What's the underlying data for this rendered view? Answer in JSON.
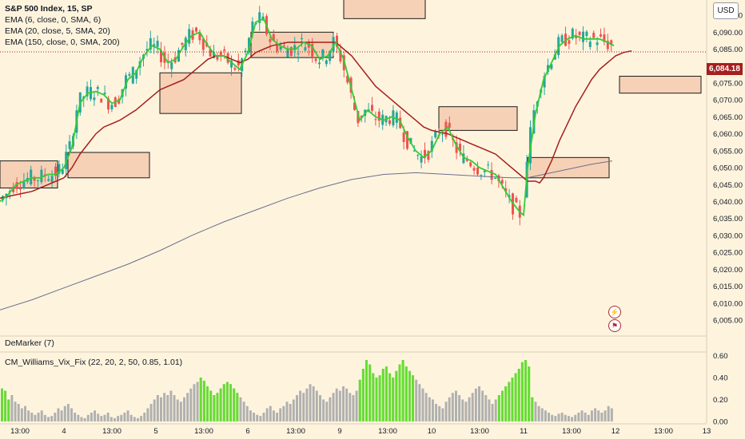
{
  "header": {
    "symbol_line": "S&P 500 Index, 15, SP",
    "indicators": [
      "EMA (6, close, 0, SMA, 6)",
      "EMA (20, close, 5, SMA, 20)",
      "EMA (150, close, 0, SMA, 200)"
    ],
    "currency_button": "USD"
  },
  "oscillators": {
    "demarker_label": "DeMarker (7)",
    "vix_fix_label": "CM_Williams_Vix_Fix (22, 20, 2, 50, 0.85, 1.01)"
  },
  "price_tag": "6,084.18",
  "icons": [
    "flash-icon",
    "flag-icon"
  ],
  "colors": {
    "background": "#fef4de",
    "up_candle": "#26a69a",
    "down_candle": "#ef5350",
    "ema6": "#33cc33",
    "ema20": "#a61e1e",
    "ema150": "#6a6f8c",
    "zone_fill": "#f3c5a8",
    "vix_normal": "#b0b0b0",
    "vix_high": "#66dd33"
  },
  "chart_data": [
    {
      "type": "candlestick",
      "title": "S&P 500 Index, 15, SP",
      "y_axis_ticks": [
        "6,005.00",
        "6,010.00",
        "6,015.00",
        "6,020.00",
        "6,025.00",
        "6,030.00",
        "6,035.00",
        "6,040.00",
        "6,045.00",
        "6,050.00",
        "6,055.00",
        "6,060.00",
        "6,065.00",
        "6,070.00",
        "6,075.00",
        "6,080.00",
        "6,085.00",
        "6,090.00",
        "6,095.00"
      ],
      "y_tick_values": [
        6005,
        6010,
        6015,
        6020,
        6025,
        6030,
        6035,
        6040,
        6045,
        6050,
        6055,
        6060,
        6065,
        6070,
        6075,
        6080,
        6085,
        6090,
        6095
      ],
      "ylim": [
        6001,
        6099.5
      ],
      "x_axis_ticks": [
        "13:00",
        "4",
        "13:00",
        "5",
        "13:00",
        "6",
        "13:00",
        "9",
        "13:00",
        "10",
        "13:00",
        "11",
        "13:00",
        "12",
        "13:00",
        "13"
      ],
      "last_price": 6084.18,
      "series": [
        {
          "name": "EMA (6, close, 0, SMA, 6)",
          "points": [
            [
              0,
              6040
            ],
            [
              10,
              6042
            ],
            [
              20,
              6045
            ],
            [
              30,
              6046
            ],
            [
              40,
              6047
            ],
            [
              50,
              6047
            ],
            [
              60,
              6048
            ],
            [
              70,
              6048
            ],
            [
              80,
              6050
            ],
            [
              90,
              6056
            ],
            [
              100,
              6069
            ],
            [
              110,
              6072
            ],
            [
              120,
              6072.5
            ],
            [
              130,
              6071.5
            ],
            [
              140,
              6069
            ],
            [
              150,
              6070
            ],
            [
              160,
              6076
            ],
            [
              170,
              6078
            ],
            [
              180,
              6083
            ],
            [
              190,
              6086
            ],
            [
              200,
              6085
            ],
            [
              210,
              6081
            ],
            [
              220,
              6082
            ],
            [
              230,
              6086
            ],
            [
              240,
              6089
            ],
            [
              250,
              6090
            ],
            [
              260,
              6086
            ],
            [
              270,
              6083
            ],
            [
              280,
              6083
            ],
            [
              290,
              6081
            ],
            [
              300,
              6079
            ],
            [
              310,
              6084
            ],
            [
              320,
              6093
            ],
            [
              330,
              6094
            ],
            [
              340,
              6088
            ],
            [
              350,
              6086
            ],
            [
              360,
              6085
            ],
            [
              370,
              6085
            ],
            [
              380,
              6087
            ],
            [
              390,
              6086
            ],
            [
              400,
              6082
            ],
            [
              410,
              6083
            ],
            [
              420,
              6087
            ],
            [
              430,
              6082
            ],
            [
              440,
              6073
            ],
            [
              450,
              6064
            ],
            [
              460,
              6067
            ],
            [
              470,
              6065
            ],
            [
              480,
              6064
            ],
            [
              490,
              6065
            ],
            [
              500,
              6064
            ],
            [
              510,
              6059
            ],
            [
              520,
              6055
            ],
            [
              530,
              6053
            ],
            [
              540,
              6055
            ],
            [
              550,
              6060
            ],
            [
              560,
              6062
            ],
            [
              570,
              6057
            ],
            [
              580,
              6053
            ],
            [
              590,
              6052
            ],
            [
              600,
              6050
            ],
            [
              610,
              6049
            ],
            [
              620,
              6048
            ],
            [
              630,
              6044
            ],
            [
              640,
              6040
            ],
            [
              650,
              6037
            ],
            [
              655,
              6036
            ],
            [
              660,
              6050
            ],
            [
              670,
              6066
            ],
            [
              680,
              6076
            ],
            [
              690,
              6081
            ],
            [
              700,
              6086
            ],
            [
              710,
              6088
            ],
            [
              720,
              6089
            ],
            [
              730,
              6088
            ],
            [
              740,
              6088
            ],
            [
              750,
              6088
            ],
            [
              760,
              6087
            ],
            [
              768,
              6086
            ]
          ]
        },
        {
          "name": "EMA (20, close, 5, SMA, 20)",
          "points": [
            [
              0,
              6041
            ],
            [
              10,
              6041.5
            ],
            [
              20,
              6042
            ],
            [
              30,
              6042.5
            ],
            [
              40,
              6043
            ],
            [
              50,
              6044
            ],
            [
              60,
              6045
            ],
            [
              70,
              6046
            ],
            [
              80,
              6047
            ],
            [
              90,
              6050
            ],
            [
              100,
              6054
            ],
            [
              110,
              6057
            ],
            [
              120,
              6060
            ],
            [
              130,
              6062
            ],
            [
              140,
              6063
            ],
            [
              150,
              6064
            ],
            [
              160,
              6065.5
            ],
            [
              170,
              6067
            ],
            [
              180,
              6069
            ],
            [
              190,
              6071
            ],
            [
              200,
              6073
            ],
            [
              210,
              6074
            ],
            [
              220,
              6075
            ],
            [
              230,
              6076
            ],
            [
              240,
              6078
            ],
            [
              250,
              6080
            ],
            [
              260,
              6082
            ],
            [
              270,
              6083
            ],
            [
              280,
              6083
            ],
            [
              290,
              6082
            ],
            [
              300,
              6081
            ],
            [
              310,
              6082
            ],
            [
              320,
              6084
            ],
            [
              330,
              6085
            ],
            [
              340,
              6086
            ],
            [
              350,
              6086.5
            ],
            [
              360,
              6087
            ],
            [
              370,
              6087
            ],
            [
              380,
              6087
            ],
            [
              390,
              6087
            ],
            [
              400,
              6087
            ],
            [
              410,
              6087
            ],
            [
              420,
              6087
            ],
            [
              430,
              6085
            ],
            [
              440,
              6083
            ],
            [
              450,
              6080
            ],
            [
              460,
              6077
            ],
            [
              470,
              6074
            ],
            [
              480,
              6072
            ],
            [
              490,
              6070
            ],
            [
              500,
              6068
            ],
            [
              510,
              6066
            ],
            [
              520,
              6064
            ],
            [
              530,
              6062
            ],
            [
              540,
              6061
            ],
            [
              550,
              6060.5
            ],
            [
              560,
              6060
            ],
            [
              570,
              6059
            ],
            [
              580,
              6058
            ],
            [
              590,
              6057
            ],
            [
              600,
              6056
            ],
            [
              610,
              6055
            ],
            [
              620,
              6054
            ],
            [
              630,
              6052
            ],
            [
              640,
              6050
            ],
            [
              650,
              6048
            ],
            [
              660,
              6046
            ],
            [
              670,
              6046
            ],
            [
              675,
              6045.5
            ],
            [
              680,
              6047
            ],
            [
              690,
              6052
            ],
            [
              700,
              6058
            ],
            [
              710,
              6063
            ],
            [
              720,
              6068
            ],
            [
              730,
              6072
            ],
            [
              740,
              6076
            ],
            [
              750,
              6079
            ],
            [
              760,
              6081
            ],
            [
              770,
              6083
            ],
            [
              780,
              6084
            ],
            [
              790,
              6084.5
            ]
          ]
        },
        {
          "name": "EMA (150, close, 0, SMA, 200)",
          "points": [
            [
              0,
              6008
            ],
            [
              40,
              6011
            ],
            [
              80,
              6014.5
            ],
            [
              120,
              6018
            ],
            [
              160,
              6021.5
            ],
            [
              200,
              6025.5
            ],
            [
              240,
              6030
            ],
            [
              280,
              6034
            ],
            [
              320,
              6037.5
            ],
            [
              360,
              6041
            ],
            [
              400,
              6044
            ],
            [
              440,
              6046.5
            ],
            [
              480,
              6048
            ],
            [
              520,
              6048.5
            ],
            [
              560,
              6048
            ],
            [
              600,
              6047.5
            ],
            [
              640,
              6047
            ],
            [
              660,
              6047
            ],
            [
              700,
              6049
            ],
            [
              740,
              6051
            ],
            [
              766,
              6052
            ]
          ]
        }
      ],
      "zones": [
        {
          "x_range": [
            0,
            72
          ],
          "price_range": [
            6044,
            6052
          ]
        },
        {
          "x_range": [
            85,
            187
          ],
          "price_range": [
            6047,
            6054.5
          ]
        },
        {
          "x_range": [
            200,
            302
          ],
          "price_range": [
            6066,
            6078
          ]
        },
        {
          "x_range": [
            314,
            417
          ],
          "price_range": [
            6082.5,
            6090
          ]
        },
        {
          "x_range": [
            430,
            532
          ],
          "price_range": [
            6094,
            6100
          ]
        },
        {
          "x_range": [
            549,
            647
          ],
          "price_range": [
            6061,
            6068
          ]
        },
        {
          "x_range": [
            660,
            762
          ],
          "price_range": [
            6047,
            6053
          ]
        },
        {
          "x_range": [
            775,
            877
          ],
          "price_range": [
            6072,
            6077
          ]
        }
      ]
    },
    {
      "type": "bar",
      "title": "CM_Williams_Vix_Fix (22, 20, 2, 50, 0.85, 1.01)",
      "y_axis_ticks": [
        "0.00",
        "0.20",
        "0.40",
        "0.60"
      ],
      "y_tick_values": [
        0,
        0.2,
        0.4,
        0.6
      ],
      "ylim": [
        0,
        0.64
      ],
      "values": [
        0.3,
        0.28,
        0.2,
        0.24,
        0.18,
        0.16,
        0.12,
        0.14,
        0.1,
        0.08,
        0.06,
        0.08,
        0.1,
        0.06,
        0.04,
        0.05,
        0.08,
        0.12,
        0.1,
        0.14,
        0.16,
        0.12,
        0.08,
        0.06,
        0.04,
        0.03,
        0.06,
        0.08,
        0.1,
        0.07,
        0.05,
        0.06,
        0.08,
        0.04,
        0.03,
        0.05,
        0.06,
        0.08,
        0.1,
        0.06,
        0.04,
        0.03,
        0.05,
        0.08,
        0.12,
        0.16,
        0.2,
        0.24,
        0.22,
        0.26,
        0.24,
        0.28,
        0.24,
        0.2,
        0.18,
        0.22,
        0.26,
        0.3,
        0.34,
        0.36,
        0.4,
        0.37,
        0.32,
        0.28,
        0.24,
        0.26,
        0.3,
        0.34,
        0.36,
        0.34,
        0.3,
        0.26,
        0.22,
        0.18,
        0.14,
        0.1,
        0.08,
        0.06,
        0.05,
        0.08,
        0.12,
        0.14,
        0.1,
        0.08,
        0.12,
        0.14,
        0.18,
        0.16,
        0.2,
        0.24,
        0.28,
        0.26,
        0.3,
        0.34,
        0.32,
        0.28,
        0.24,
        0.2,
        0.18,
        0.22,
        0.26,
        0.3,
        0.28,
        0.32,
        0.3,
        0.26,
        0.24,
        0.28,
        0.38,
        0.48,
        0.56,
        0.52,
        0.44,
        0.4,
        0.42,
        0.48,
        0.5,
        0.44,
        0.4,
        0.46,
        0.52,
        0.56,
        0.5,
        0.46,
        0.42,
        0.38,
        0.34,
        0.3,
        0.26,
        0.22,
        0.2,
        0.16,
        0.14,
        0.12,
        0.18,
        0.22,
        0.26,
        0.28,
        0.24,
        0.2,
        0.18,
        0.22,
        0.26,
        0.3,
        0.32,
        0.28,
        0.24,
        0.2,
        0.16,
        0.2,
        0.24,
        0.28,
        0.32,
        0.36,
        0.4,
        0.44,
        0.48,
        0.54,
        0.56,
        0.5,
        0.22,
        0.18,
        0.14,
        0.12,
        0.1,
        0.08,
        0.06,
        0.05,
        0.07,
        0.08,
        0.06,
        0.05,
        0.04,
        0.06,
        0.08,
        0.1,
        0.08,
        0.06,
        0.1,
        0.12,
        0.1,
        0.08,
        0.1,
        0.14,
        0.12
      ],
      "highlight_threshold": 0.5
    }
  ]
}
